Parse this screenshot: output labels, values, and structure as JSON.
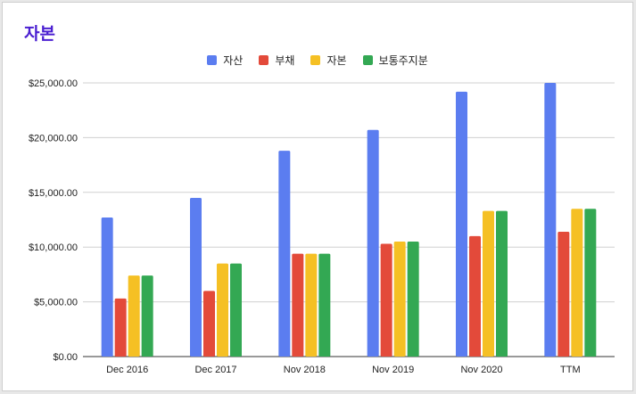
{
  "chart_data": {
    "type": "bar",
    "title": "자본",
    "categories": [
      "Dec 2016",
      "Dec 2017",
      "Nov 2018",
      "Nov 2019",
      "Nov 2020",
      "TTM"
    ],
    "series": [
      {
        "name": "자산",
        "color": "#5b7df0",
        "values": [
          12700,
          14500,
          18800,
          20700,
          24200,
          25000
        ]
      },
      {
        "name": "부채",
        "color": "#e34a3a",
        "values": [
          5300,
          6000,
          9400,
          10300,
          11000,
          11400
        ]
      },
      {
        "name": "자본",
        "color": "#f5c024",
        "values": [
          7400,
          8500,
          9400,
          10500,
          13300,
          13500
        ]
      },
      {
        "name": "보통주지분",
        "color": "#33a853",
        "values": [
          7400,
          8500,
          9400,
          10500,
          13300,
          13500
        ]
      }
    ],
    "yticks": [
      "$0.00",
      "$5,000.00",
      "$10,000.00",
      "$15,000.00",
      "$20,000.00",
      "$25,000.00"
    ],
    "ylim": [
      0,
      25000
    ],
    "legend_position": "top",
    "grid": true
  }
}
